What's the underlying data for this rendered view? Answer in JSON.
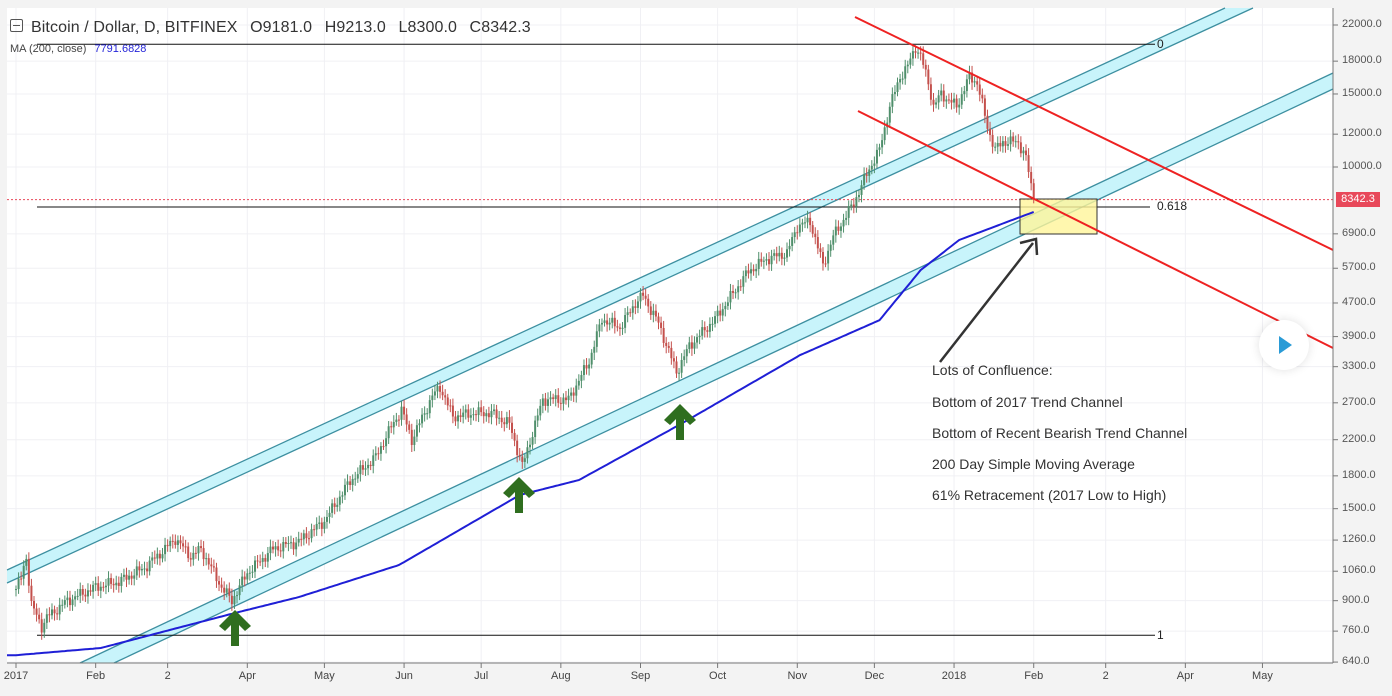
{
  "header": {
    "title": "Bitcoin / Dollar, D, BITFINEX",
    "open": "O9181.0",
    "high": "H9213.0",
    "low": "L8300.0",
    "close": "C8342.3",
    "indicator_label": "MA (200, close)",
    "indicator_value": "7791.6828"
  },
  "colors": {
    "up": "#4f8f6b",
    "down": "#c4504c",
    "ma": "#1f1fd6",
    "channel_fill": "#c8f4fb",
    "channel_line": "#3d8fa0",
    "bear_line": "#ee2222",
    "price_tag": "#e8485a",
    "arrow_green": "#2f6e1f",
    "box": "#fff59a"
  },
  "chart_data": {
    "type": "candlestick",
    "symbol": "Bitcoin / Dollar",
    "interval": "D",
    "exchange": "BITFINEX",
    "y_scale": "log",
    "ylim": [
      640,
      22000
    ],
    "y_ticks": [
      "22000.0",
      "18000.0",
      "15000.0",
      "12000.0",
      "10000.0",
      "6900.0",
      "5700.0",
      "4700.0",
      "3900.0",
      "3300.0",
      "2700.0",
      "2200.0",
      "1800.0",
      "1500.0",
      "1260.0",
      "1060.0",
      "900.0",
      "760.0",
      "640.0"
    ],
    "y_tick_values": [
      22000,
      18000,
      15000,
      12000,
      10000,
      6900,
      5700,
      4700,
      3900,
      3300,
      2700,
      2200,
      1800,
      1500,
      1260,
      1060,
      900,
      760,
      640
    ],
    "x_ticks": [
      {
        "label": "2017",
        "day": 0
      },
      {
        "label": "Feb",
        "day": 31
      },
      {
        "label": "2",
        "day": 59
      },
      {
        "label": "Apr",
        "day": 90
      },
      {
        "label": "May",
        "day": 120
      },
      {
        "label": "Jun",
        "day": 151
      },
      {
        "label": "Jul",
        "day": 181
      },
      {
        "label": "Aug",
        "day": 212
      },
      {
        "label": "Sep",
        "day": 243
      },
      {
        "label": "Oct",
        "day": 273
      },
      {
        "label": "Nov",
        "day": 304
      },
      {
        "label": "Dec",
        "day": 334
      },
      {
        "label": "2018",
        "day": 365
      },
      {
        "label": "Feb",
        "day": 396
      },
      {
        "label": "2",
        "day": 424
      },
      {
        "label": "Apr",
        "day": 455
      },
      {
        "label": "May",
        "day": 485
      }
    ],
    "last_price": "8342.3",
    "last_price_value": 8342.3,
    "price_anchors_day_close": [
      [
        0,
        960
      ],
      [
        2,
        1020
      ],
      [
        4,
        1150
      ],
      [
        6,
        880
      ],
      [
        10,
        780
      ],
      [
        12,
        820
      ],
      [
        20,
        900
      ],
      [
        31,
        970
      ],
      [
        40,
        1000
      ],
      [
        50,
        1080
      ],
      [
        58,
        1200
      ],
      [
        62,
        1270
      ],
      [
        68,
        1150
      ],
      [
        72,
        1200
      ],
      [
        80,
        970
      ],
      [
        84,
        900
      ],
      [
        90,
        1050
      ],
      [
        100,
        1200
      ],
      [
        110,
        1250
      ],
      [
        120,
        1400
      ],
      [
        130,
        1750
      ],
      [
        140,
        2000
      ],
      [
        145,
        2300
      ],
      [
        150,
        2600
      ],
      [
        154,
        2200
      ],
      [
        162,
        2800
      ],
      [
        165,
        2950
      ],
      [
        170,
        2500
      ],
      [
        178,
        2550
      ],
      [
        185,
        2550
      ],
      [
        192,
        2400
      ],
      [
        197,
        1900
      ],
      [
        205,
        2750
      ],
      [
        215,
        2750
      ],
      [
        223,
        3400
      ],
      [
        228,
        4300
      ],
      [
        235,
        4100
      ],
      [
        241,
        4700
      ],
      [
        244,
        4900
      ],
      [
        250,
        4200
      ],
      [
        257,
        3200
      ],
      [
        262,
        3700
      ],
      [
        272,
        4300
      ],
      [
        285,
        5600
      ],
      [
        292,
        6000
      ],
      [
        300,
        6200
      ],
      [
        304,
        7200
      ],
      [
        309,
        7400
      ],
      [
        314,
        5800
      ],
      [
        318,
        6800
      ],
      [
        326,
        8200
      ],
      [
        332,
        9900
      ],
      [
        336,
        11000
      ],
      [
        340,
        14000
      ],
      [
        344,
        16500
      ],
      [
        347,
        17500
      ],
      [
        350,
        19500
      ],
      [
        352,
        18500
      ],
      [
        355,
        16000
      ],
      [
        357,
        14000
      ],
      [
        360,
        15000
      ],
      [
        366,
        14000
      ],
      [
        371,
        16500
      ],
      [
        374,
        16000
      ],
      [
        378,
        12500
      ],
      [
        381,
        11000
      ],
      [
        384,
        11500
      ],
      [
        390,
        11500
      ],
      [
        393,
        10500
      ],
      [
        396,
        8342.3
      ]
    ],
    "ma200_anchors_day_value": [
      [
        0,
        665
      ],
      [
        33,
        692
      ],
      [
        85,
        840
      ],
      [
        110,
        918
      ],
      [
        149,
        1097
      ],
      [
        196,
        1618
      ],
      [
        219,
        1758
      ],
      [
        258,
        2387
      ],
      [
        305,
        3517
      ],
      [
        336,
        4272
      ],
      [
        352,
        5640
      ],
      [
        367,
        6668
      ],
      [
        396,
        7792
      ]
    ],
    "fib_levels": [
      {
        "label": "0",
        "price": 19770
      },
      {
        "label": "0.618",
        "price": 8011
      },
      {
        "label": "1",
        "price": 743
      }
    ],
    "annotations": {
      "heading": "Lots of Confluence:",
      "items": [
        "Bottom of 2017 Trend Channel",
        "Bottom of Recent Bearish Trend Channel",
        "200 Day Simple Moving Average",
        "61% Retracement (2017 Low to High)"
      ]
    }
  }
}
